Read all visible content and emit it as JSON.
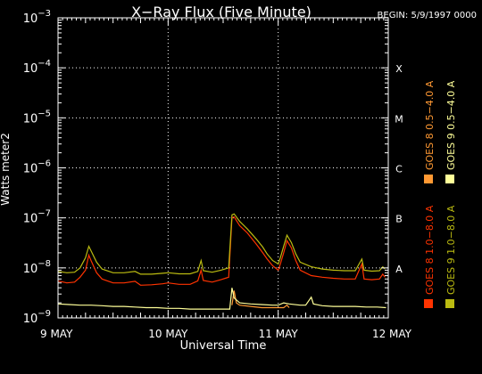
{
  "chart_data": {
    "type": "line",
    "title": "X−Ray Flux (Five Minute)",
    "begin_label": "BEGIN: 5/9/1997 0000",
    "xlabel": "Universal Time",
    "ylabel": "Watts meter2",
    "x_ticks": [
      "9 MAY",
      "10 MAY",
      "11 MAY",
      "12 MAY"
    ],
    "xlim_days": [
      9,
      12
    ],
    "y_scale": "log",
    "ylim": [
      1e-09,
      0.001
    ],
    "y_ticks": [
      {
        "base": "10",
        "exp": "−9",
        "value": 1e-09
      },
      {
        "base": "10",
        "exp": "−8",
        "value": 1e-08
      },
      {
        "base": "10",
        "exp": "−7",
        "value": 1e-07
      },
      {
        "base": "10",
        "exp": "−6",
        "value": 1e-06
      },
      {
        "base": "10",
        "exp": "−5",
        "value": 1e-05
      },
      {
        "base": "10",
        "exp": "−4",
        "value": 0.0001
      },
      {
        "base": "10",
        "exp": "−3",
        "value": 0.001
      }
    ],
    "flare_classes": [
      {
        "label": "X",
        "value": 0.0001
      },
      {
        "label": "M",
        "value": 1e-05
      },
      {
        "label": "C",
        "value": 1e-06
      },
      {
        "label": "B",
        "value": 1e-07
      },
      {
        "label": "A",
        "value": 1e-08
      }
    ],
    "grid": "dotted verticals at day boundaries and horizontals at class thresholds",
    "legend_placement": "right, vertical text",
    "series": [
      {
        "name": "GOES 8 1.0−8.0 A",
        "color": "#ff3300",
        "points": [
          [
            9.0,
            5.5e-09
          ],
          [
            9.08,
            5e-09
          ],
          [
            9.15,
            5.2e-09
          ],
          [
            9.2,
            6.5e-09
          ],
          [
            9.25,
            9e-09
          ],
          [
            9.28,
            1.8e-08
          ],
          [
            9.3,
            1.4e-08
          ],
          [
            9.35,
            8e-09
          ],
          [
            9.4,
            6e-09
          ],
          [
            9.5,
            5e-09
          ],
          [
            9.6,
            5e-09
          ],
          [
            9.7,
            5.4e-09
          ],
          [
            9.75,
            4.5e-09
          ],
          [
            9.85,
            4.6e-09
          ],
          [
            9.95,
            4.8e-09
          ],
          [
            10.0,
            5e-09
          ],
          [
            10.1,
            4.7e-09
          ],
          [
            10.2,
            4.7e-09
          ],
          [
            10.27,
            5.5e-09
          ],
          [
            10.3,
            9e-09
          ],
          [
            10.32,
            5.6e-09
          ],
          [
            10.4,
            5.2e-09
          ],
          [
            10.48,
            5.8e-09
          ],
          [
            10.55,
            6.5e-09
          ],
          [
            10.58,
            1e-07
          ],
          [
            10.6,
            1.05e-07
          ],
          [
            10.65,
            7e-08
          ],
          [
            10.72,
            5e-08
          ],
          [
            10.8,
            3e-08
          ],
          [
            10.86,
            2e-08
          ],
          [
            10.9,
            1.5e-08
          ],
          [
            10.95,
            1.1e-08
          ],
          [
            11.0,
            9e-09
          ],
          [
            11.02,
            1.2e-08
          ],
          [
            11.05,
            2e-08
          ],
          [
            11.08,
            3.5e-08
          ],
          [
            11.12,
            2.5e-08
          ],
          [
            11.16,
            1.4e-08
          ],
          [
            11.2,
            9e-09
          ],
          [
            11.3,
            7e-09
          ],
          [
            11.4,
            6.5e-09
          ],
          [
            11.5,
            6.2e-09
          ],
          [
            11.6,
            6e-09
          ],
          [
            11.7,
            6e-09
          ],
          [
            11.76,
            1.2e-08
          ],
          [
            11.78,
            6e-09
          ],
          [
            11.85,
            5.8e-09
          ],
          [
            11.92,
            6e-09
          ],
          [
            11.95,
            7.5e-09
          ],
          [
            11.97,
            6.5e-09
          ]
        ]
      },
      {
        "name": "GOES 8 0.5−4.0 A",
        "color": "#ff9933",
        "points": [
          [
            10.58,
            1.8e-09
          ],
          [
            10.6,
            3.5e-09
          ],
          [
            10.62,
            2e-09
          ],
          [
            10.65,
            1.8e-09
          ],
          [
            10.75,
            1.7e-09
          ],
          [
            10.85,
            1.6e-09
          ],
          [
            10.95,
            1.6e-09
          ],
          [
            11.05,
            1.6e-09
          ],
          [
            11.08,
            1.8e-09
          ],
          [
            11.1,
            1.6e-09
          ]
        ]
      },
      {
        "name": "GOES 9 1.0−8.0 A",
        "color": "#bbbb11",
        "points": [
          [
            9.0,
            8.5e-09
          ],
          [
            9.08,
            8e-09
          ],
          [
            9.15,
            8.2e-09
          ],
          [
            9.2,
            1e-08
          ],
          [
            9.25,
            1.6e-08
          ],
          [
            9.28,
            2.7e-08
          ],
          [
            9.3,
            2.2e-08
          ],
          [
            9.35,
            1.3e-08
          ],
          [
            9.4,
            9.5e-09
          ],
          [
            9.5,
            8e-09
          ],
          [
            9.6,
            8e-09
          ],
          [
            9.7,
            8.5e-09
          ],
          [
            9.75,
            7.5e-09
          ],
          [
            9.85,
            7.5e-09
          ],
          [
            9.95,
            7.8e-09
          ],
          [
            10.0,
            8e-09
          ],
          [
            10.1,
            7.6e-09
          ],
          [
            10.2,
            7.6e-09
          ],
          [
            10.27,
            8.5e-09
          ],
          [
            10.3,
            1.4e-08
          ],
          [
            10.32,
            8.8e-09
          ],
          [
            10.4,
            8.2e-09
          ],
          [
            10.48,
            9e-09
          ],
          [
            10.55,
            1e-08
          ],
          [
            10.58,
            1.15e-07
          ],
          [
            10.6,
            1.2e-07
          ],
          [
            10.65,
            8.5e-08
          ],
          [
            10.72,
            6e-08
          ],
          [
            10.8,
            3.8e-08
          ],
          [
            10.86,
            2.6e-08
          ],
          [
            10.9,
            1.9e-08
          ],
          [
            10.95,
            1.4e-08
          ],
          [
            11.0,
            1.2e-08
          ],
          [
            11.02,
            1.6e-08
          ],
          [
            11.05,
            2.7e-08
          ],
          [
            11.08,
            4.5e-08
          ],
          [
            11.12,
            3.2e-08
          ],
          [
            11.16,
            1.9e-08
          ],
          [
            11.2,
            1.3e-08
          ],
          [
            11.3,
            1.05e-08
          ],
          [
            11.4,
            9.5e-09
          ],
          [
            11.5,
            9e-09
          ],
          [
            11.6,
            8.8e-09
          ],
          [
            11.7,
            8.8e-09
          ],
          [
            11.76,
            1.5e-08
          ],
          [
            11.78,
            9e-09
          ],
          [
            11.85,
            8.6e-09
          ],
          [
            11.92,
            8.8e-09
          ],
          [
            11.95,
            1.05e-08
          ],
          [
            11.97,
            9.5e-09
          ]
        ]
      },
      {
        "name": "GOES 9 0.5−4.0 A",
        "color": "#ffff99",
        "points": [
          [
            9.0,
            1.9e-09
          ],
          [
            9.1,
            1.85e-09
          ],
          [
            9.2,
            1.8e-09
          ],
          [
            9.3,
            1.8e-09
          ],
          [
            9.4,
            1.75e-09
          ],
          [
            9.5,
            1.7e-09
          ],
          [
            9.6,
            1.7e-09
          ],
          [
            9.7,
            1.65e-09
          ],
          [
            9.8,
            1.6e-09
          ],
          [
            9.9,
            1.6e-09
          ],
          [
            10.0,
            1.55e-09
          ],
          [
            10.1,
            1.55e-09
          ],
          [
            10.2,
            1.5e-09
          ],
          [
            10.3,
            1.5e-09
          ],
          [
            10.4,
            1.5e-09
          ],
          [
            10.5,
            1.5e-09
          ],
          [
            10.56,
            1.5e-09
          ],
          [
            10.58,
            4e-09
          ],
          [
            10.6,
            2.5e-09
          ],
          [
            10.65,
            2e-09
          ],
          [
            10.75,
            1.9e-09
          ],
          [
            10.85,
            1.85e-09
          ],
          [
            10.95,
            1.8e-09
          ],
          [
            11.0,
            1.8e-09
          ],
          [
            11.05,
            2e-09
          ],
          [
            11.1,
            1.9e-09
          ],
          [
            11.2,
            1.8e-09
          ],
          [
            11.25,
            1.8e-09
          ],
          [
            11.3,
            2.6e-09
          ],
          [
            11.32,
            1.9e-09
          ],
          [
            11.4,
            1.75e-09
          ],
          [
            11.5,
            1.7e-09
          ],
          [
            11.6,
            1.7e-09
          ],
          [
            11.7,
            1.7e-09
          ],
          [
            11.8,
            1.65e-09
          ],
          [
            11.9,
            1.65e-09
          ],
          [
            11.98,
            1.6e-09
          ]
        ]
      }
    ]
  }
}
